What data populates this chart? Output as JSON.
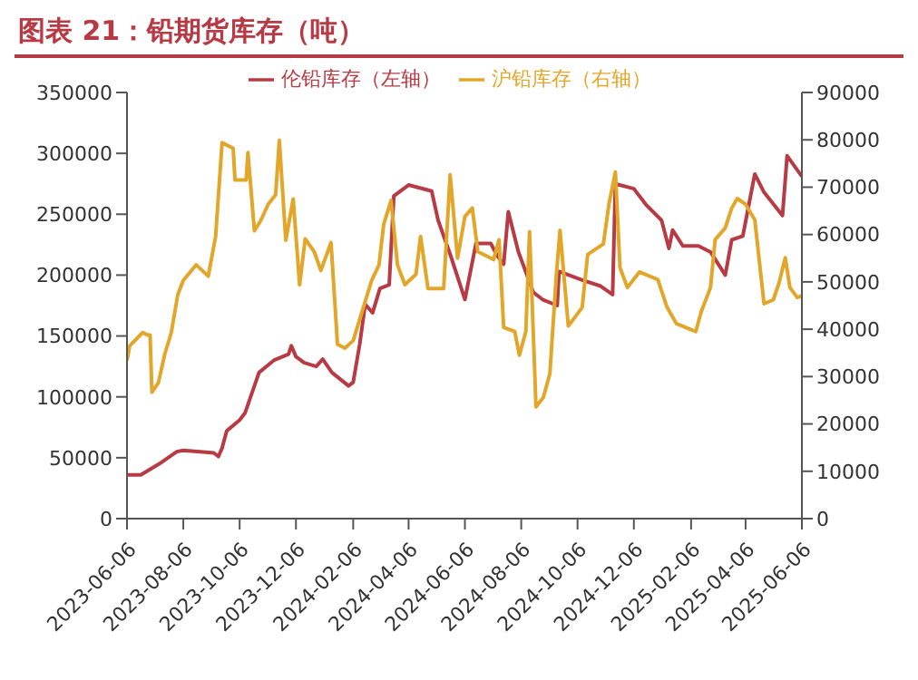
{
  "chart_data": {
    "type": "line",
    "title": "图表 21：铅期货库存（吨）",
    "legend": "top",
    "grid": false,
    "marker": "none",
    "line_style": "solid",
    "xlim": [
      "2023-06-06",
      "2025-06-06"
    ],
    "xticks": [
      "2023-06-06",
      "2023-08-06",
      "2023-10-06",
      "2023-12-06",
      "2024-02-06",
      "2024-04-06",
      "2024-06-06",
      "2024-08-06",
      "2024-10-06",
      "2024-12-06",
      "2025-02-06",
      "2025-04-06",
      "2025-06-06"
    ],
    "ylim": [
      0,
      350000
    ],
    "yticks": [
      0,
      50000,
      100000,
      150000,
      200000,
      250000,
      300000,
      350000
    ],
    "y2lim": [
      0,
      90000
    ],
    "y2ticks": [
      0,
      10000,
      20000,
      30000,
      40000,
      50000,
      60000,
      70000,
      80000,
      90000
    ],
    "series": [
      {
        "name": "伦铅库存（左轴）",
        "color": "#b83a44",
        "x": [
          "2023-06-06",
          "2023-06-21",
          "2023-07-11",
          "2023-07-30",
          "2023-08-06",
          "2023-09-08",
          "2023-09-13",
          "2023-09-17",
          "2023-09-22",
          "2023-10-06",
          "2023-10-12",
          "2023-10-27",
          "2023-11-12",
          "2023-11-28",
          "2023-12-01",
          "2023-12-06",
          "2023-12-15",
          "2023-12-28",
          "2024-01-04",
          "2024-01-14",
          "2024-02-01",
          "2024-02-06",
          "2024-02-13",
          "2024-02-19",
          "2024-02-27",
          "2024-03-06",
          "2024-03-16",
          "2024-03-21",
          "2024-04-06",
          "2024-05-01",
          "2024-05-08",
          "2024-05-22",
          "2024-06-06",
          "2024-06-18",
          "2024-07-04",
          "2024-07-11",
          "2024-07-18",
          "2024-07-23",
          "2024-08-03",
          "2024-08-19",
          "2024-08-29",
          "2024-09-14",
          "2024-09-16",
          "2024-10-11",
          "2024-10-31",
          "2024-11-13",
          "2024-11-16",
          "2024-12-06",
          "2024-12-19",
          "2025-01-05",
          "2025-01-13",
          "2025-01-17",
          "2025-01-28",
          "2025-02-14",
          "2025-02-27",
          "2025-03-15",
          "2025-03-22",
          "2025-04-03",
          "2025-04-16",
          "2025-04-26",
          "2025-05-16",
          "2025-05-21",
          "2025-06-06"
        ],
        "values": [
          36000,
          36000,
          45000,
          55000,
          56000,
          54000,
          51000,
          58000,
          72000,
          81000,
          87000,
          120000,
          130000,
          135000,
          142000,
          133000,
          128000,
          125000,
          131000,
          120000,
          109000,
          112000,
          143000,
          176000,
          169000,
          189000,
          192000,
          265000,
          274000,
          269000,
          245000,
          215000,
          180000,
          226000,
          226000,
          216000,
          209000,
          252000,
          219000,
          186000,
          180000,
          175000,
          203000,
          196000,
          191000,
          184000,
          275000,
          271000,
          258000,
          245000,
          222000,
          237000,
          224000,
          224000,
          219000,
          200000,
          229000,
          232000,
          283000,
          268000,
          249000,
          298000,
          281000
        ]
      },
      {
        "name": "沪铅库存（右轴）",
        "color": "#e2a62a",
        "axis": "y2",
        "x": [
          "2023-06-06",
          "2023-06-09",
          "2023-06-23",
          "2023-06-28",
          "2023-07-01",
          "2023-07-03",
          "2023-07-10",
          "2023-07-17",
          "2023-07-24",
          "2023-07-31",
          "2023-08-06",
          "2023-08-20",
          "2023-09-02",
          "2023-09-10",
          "2023-09-17",
          "2023-09-29",
          "2023-10-01",
          "2023-10-13",
          "2023-10-15",
          "2023-10-22",
          "2023-10-29",
          "2023-11-06",
          "2023-11-14",
          "2023-11-18",
          "2023-11-25",
          "2023-12-03",
          "2023-12-10",
          "2023-12-16",
          "2023-12-26",
          "2024-01-02",
          "2024-01-13",
          "2024-01-20",
          "2024-01-28",
          "2024-02-06",
          "2024-02-26",
          "2024-03-05",
          "2024-03-10",
          "2024-03-18",
          "2024-03-25",
          "2024-04-02",
          "2024-04-14",
          "2024-04-19",
          "2024-04-27",
          "2024-05-14",
          "2024-05-21",
          "2024-05-29",
          "2024-06-06",
          "2024-06-14",
          "2024-06-20",
          "2024-07-07",
          "2024-07-13",
          "2024-07-18",
          "2024-07-30",
          "2024-08-04",
          "2024-08-11",
          "2024-08-15",
          "2024-08-22",
          "2024-08-30",
          "2024-09-06",
          "2024-09-13",
          "2024-09-17",
          "2024-09-26",
          "2024-10-11",
          "2024-10-17",
          "2024-11-03",
          "2024-11-09",
          "2024-11-16",
          "2024-11-21",
          "2024-11-29",
          "2024-12-12",
          "2025-01-01",
          "2025-01-11",
          "2025-01-21",
          "2025-02-11",
          "2025-02-17",
          "2025-02-27",
          "2025-03-04",
          "2025-03-15",
          "2025-03-22",
          "2025-03-28",
          "2025-04-06",
          "2025-04-16",
          "2025-04-26",
          "2025-05-06",
          "2025-05-12",
          "2025-05-19",
          "2025-05-24",
          "2025-06-01",
          "2025-06-06"
        ],
        "values": [
          33400,
          36500,
          39300,
          38800,
          38800,
          26700,
          28700,
          34800,
          39300,
          47300,
          50300,
          53600,
          51200,
          59600,
          79400,
          78200,
          71500,
          71500,
          77300,
          60800,
          63000,
          66400,
          68400,
          79900,
          58800,
          67500,
          49400,
          59100,
          56300,
          52400,
          58300,
          36800,
          36000,
          37600,
          50300,
          53600,
          62100,
          67200,
          53600,
          49400,
          51600,
          59600,
          48600,
          48600,
          72600,
          55000,
          63800,
          65600,
          56400,
          54700,
          58900,
          40400,
          39500,
          34500,
          39500,
          60600,
          23600,
          25600,
          30600,
          51300,
          60900,
          40700,
          44600,
          55800,
          58000,
          66400,
          73200,
          53000,
          48800,
          52100,
          50500,
          44600,
          41200,
          39500,
          43700,
          48800,
          58900,
          61400,
          65600,
          67600,
          66400,
          63100,
          45400,
          46200,
          49600,
          55100,
          48800,
          46700,
          47100
        ]
      }
    ]
  }
}
